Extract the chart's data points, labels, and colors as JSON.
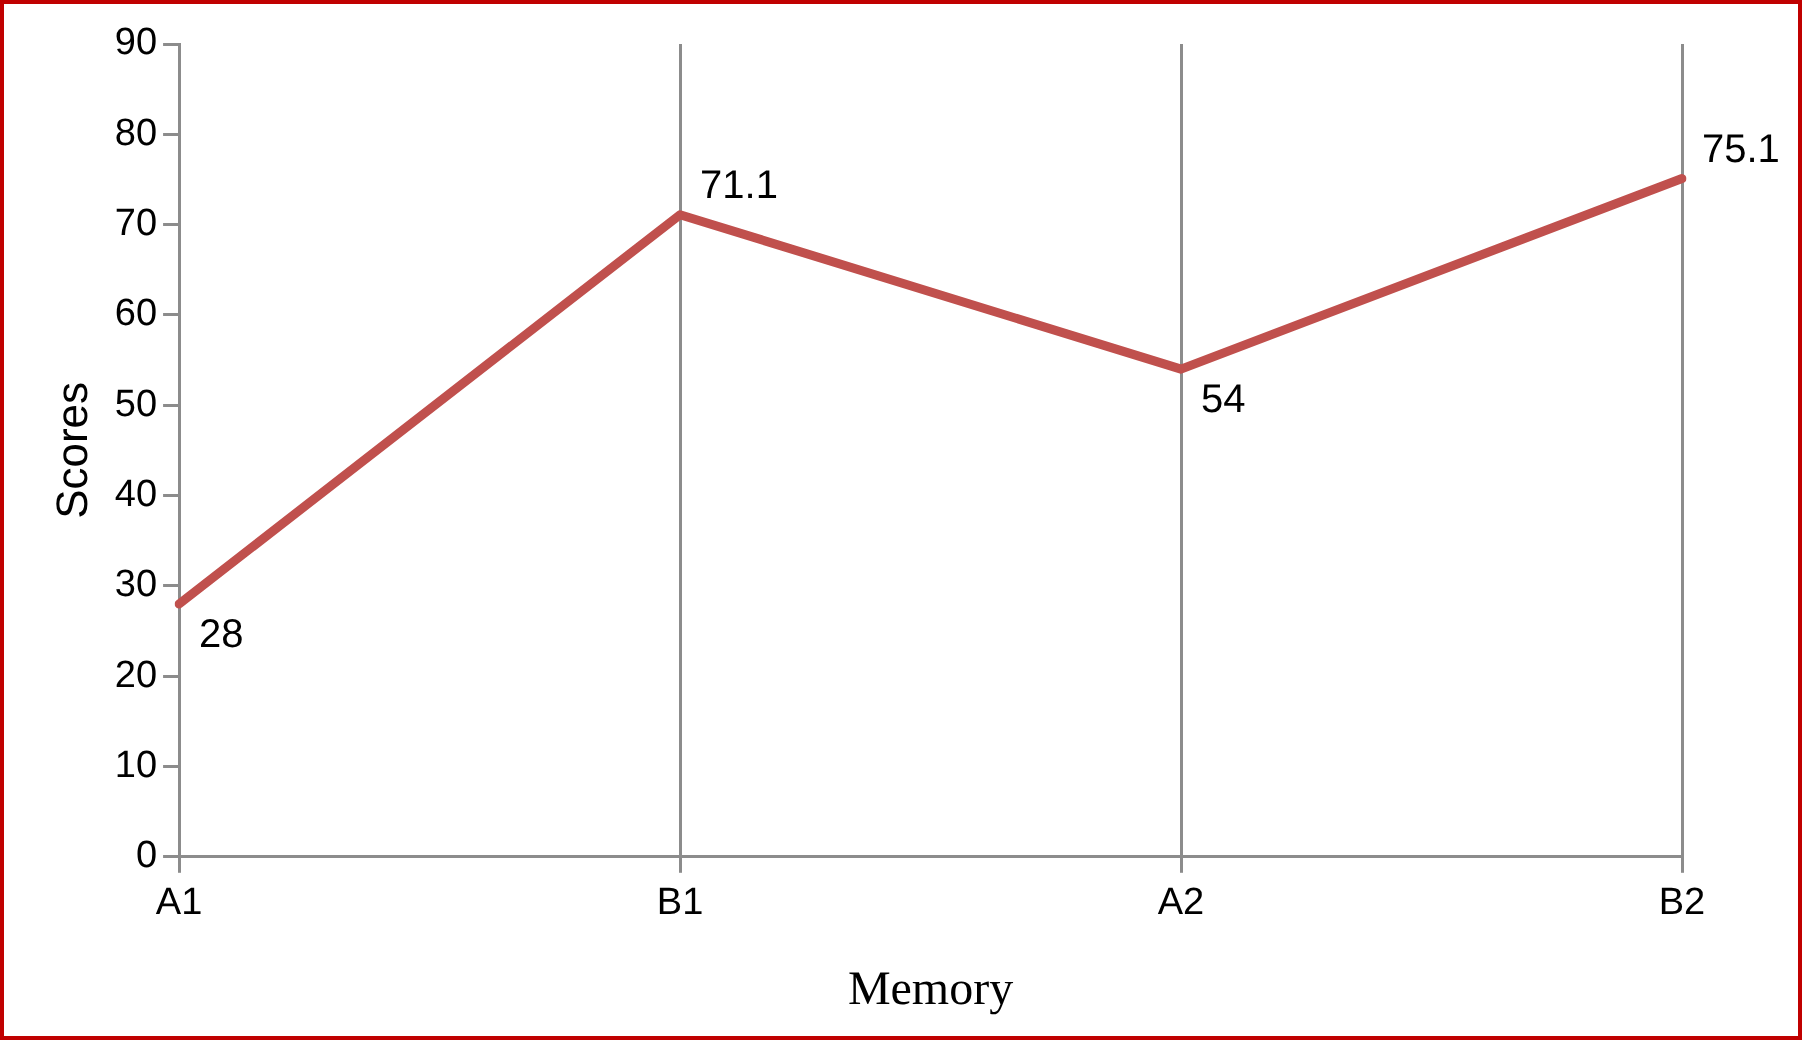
{
  "chart_data": {
    "type": "line",
    "xlabel": "Memory",
    "ylabel": "Scores",
    "categories": [
      "A1",
      "B1",
      "A2",
      "B2"
    ],
    "series": [
      {
        "color": "#c0504d",
        "values": [
          28,
          71.1,
          54,
          75.1
        ]
      }
    ],
    "ylim": [
      0,
      90
    ],
    "yticks": [
      0,
      10,
      20,
      30,
      40,
      50,
      60,
      70,
      80,
      90
    ],
    "grid": "x",
    "legend": false,
    "marker": "none",
    "line_style": "solid",
    "data_labels": true
  }
}
